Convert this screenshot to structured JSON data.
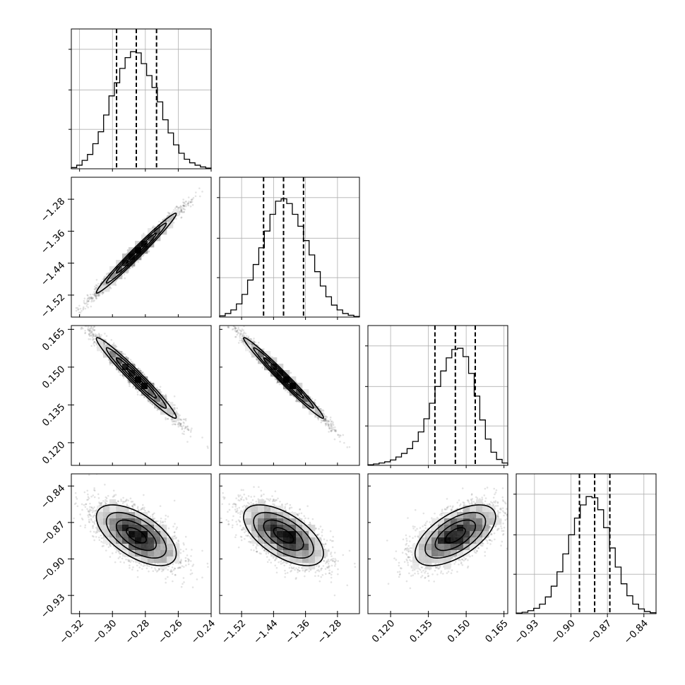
{
  "chart_data": {
    "type": "corner",
    "parameters": 4,
    "histogram_quantile_lines": [
      0.16,
      0.5,
      0.84
    ],
    "contour_levels": 4,
    "grid": true,
    "params": [
      {
        "index": 0,
        "range": [
          -0.325,
          -0.24
        ],
        "median": -0.2855,
        "q16": -0.2975,
        "q84": -0.2732,
        "ticks": [
          -0.32,
          -0.3,
          -0.28,
          -0.26,
          -0.24
        ],
        "tick_labels": [
          "−0.32",
          "−0.30",
          "−0.28",
          "−0.26",
          "−0.24"
        ],
        "hist_counts": [
          0.01,
          0.03,
          0.07,
          0.12,
          0.21,
          0.31,
          0.45,
          0.61,
          0.72,
          0.84,
          0.93,
          0.98,
          0.97,
          0.88,
          0.78,
          0.68,
          0.56,
          0.41,
          0.3,
          0.2,
          0.13,
          0.08,
          0.05,
          0.03,
          0.015,
          0.006
        ],
        "hist_gridlines": [
          0.33,
          0.66,
          1.0
        ]
      },
      {
        "index": 1,
        "range": [
          -1.575,
          -1.225
        ],
        "median": -1.415,
        "q16": -1.465,
        "q84": -1.365,
        "ticks": [
          -1.52,
          -1.44,
          -1.36,
          -1.28
        ],
        "tick_labels": [
          "−1.52",
          "−1.44",
          "−1.36",
          "−1.28"
        ],
        "hist_counts": [
          0.01,
          0.03,
          0.06,
          0.11,
          0.19,
          0.31,
          0.44,
          0.58,
          0.72,
          0.86,
          0.97,
          0.99,
          0.95,
          0.86,
          0.76,
          0.64,
          0.52,
          0.38,
          0.26,
          0.17,
          0.1,
          0.06,
          0.03,
          0.015,
          0.005
        ],
        "hist_gridlines": [
          0.33,
          0.66,
          1.0
        ]
      },
      {
        "index": 2,
        "range": [
          0.111,
          0.1665
        ],
        "median": 0.1457,
        "q16": 0.1376,
        "q84": 0.1536,
        "ticks": [
          0.12,
          0.135,
          0.15,
          0.165
        ],
        "tick_labels": [
          "0.120",
          "0.135",
          "0.150",
          "0.165"
        ],
        "hist_counts": [
          0.005,
          0.012,
          0.02,
          0.03,
          0.045,
          0.07,
          0.1,
          0.14,
          0.2,
          0.28,
          0.39,
          0.52,
          0.66,
          0.79,
          0.9,
          0.97,
          0.98,
          0.91,
          0.77,
          0.58,
          0.38,
          0.22,
          0.11,
          0.05,
          0.02
        ],
        "hist_gridlines": [
          0.33,
          0.66,
          1.0
        ]
      },
      {
        "index": 3,
        "range": [
          -0.945,
          -0.83
        ],
        "median": -0.8805,
        "q16": -0.893,
        "q84": -0.868,
        "ticks": [
          -0.93,
          -0.9,
          -0.87,
          -0.84
        ],
        "tick_labels": [
          "−0.93",
          "−0.90",
          "−0.87",
          "−0.84"
        ],
        "hist_counts": [
          0.005,
          0.012,
          0.025,
          0.045,
          0.08,
          0.14,
          0.23,
          0.35,
          0.5,
          0.66,
          0.8,
          0.91,
          0.98,
          0.97,
          0.87,
          0.72,
          0.55,
          0.39,
          0.25,
          0.15,
          0.08,
          0.04,
          0.018,
          0.008
        ],
        "hist_gridlines": [
          0.33,
          0.66,
          1.0
        ]
      }
    ],
    "pair_correlations": [
      {
        "x": 0,
        "y": 1,
        "rho": 0.985
      },
      {
        "x": 0,
        "y": 2,
        "rho": -0.975
      },
      {
        "x": 1,
        "y": 2,
        "rho": -0.985
      },
      {
        "x": 0,
        "y": 3,
        "rho": -0.6
      },
      {
        "x": 1,
        "y": 3,
        "rho": -0.6
      },
      {
        "x": 2,
        "y": 3,
        "rho": 0.6
      }
    ],
    "y_axis_labels": {
      "1": [
        "−1.28",
        "−1.36",
        "−1.44",
        "−1.52"
      ],
      "2": [
        "0.165",
        "0.150",
        "0.135",
        "0.120"
      ],
      "3": [
        "−0.84",
        "−0.87",
        "−0.90",
        "−0.93"
      ]
    }
  }
}
